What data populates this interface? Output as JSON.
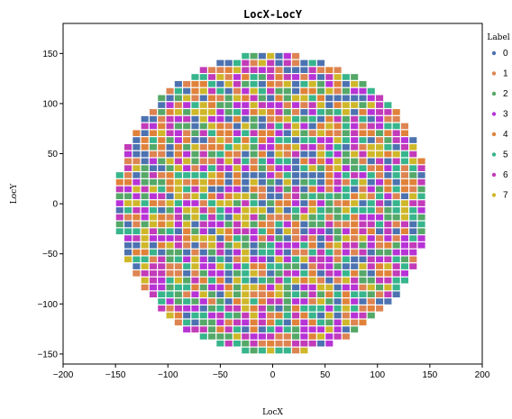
{
  "chart_data": {
    "type": "scatter",
    "title": "LocX-LocY",
    "xlabel": "LocX",
    "ylabel": "LocY",
    "xlim": [
      -200,
      200
    ],
    "ylim": [
      -160,
      180
    ],
    "xticks": [
      -200,
      -150,
      -100,
      -50,
      0,
      50,
      100,
      150,
      200
    ],
    "yticks": [
      -150,
      -100,
      -50,
      0,
      50,
      100,
      150
    ],
    "grid": false,
    "legend": {
      "title": "Label",
      "placement": "right-outside-top"
    },
    "series": [
      {
        "name": "0",
        "color": "#4c72b0"
      },
      {
        "name": "1",
        "color": "#dd8452"
      },
      {
        "name": "2",
        "color": "#55a868"
      },
      {
        "name": "3",
        "color": "#b733d6"
      },
      {
        "name": "4",
        "color": "#e0823a"
      },
      {
        "name": "5",
        "color": "#37b58c"
      },
      {
        "name": "6",
        "color": "#c23bb8"
      },
      {
        "name": "7",
        "color": "#cfb72a"
      }
    ],
    "wafer": {
      "shape": "circle",
      "center": [
        0,
        0
      ],
      "radius": 150,
      "grid_step": [
        8,
        7
      ],
      "point_encoding": "label assigned per die; dies fill the circle"
    }
  }
}
